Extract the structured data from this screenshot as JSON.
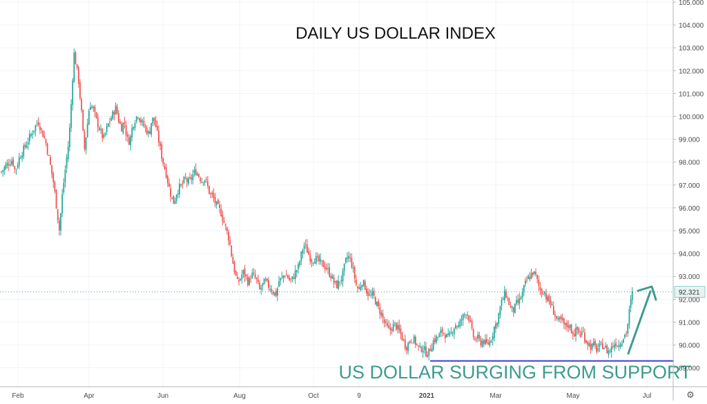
{
  "chart_data": {
    "type": "candlestick",
    "title": "DAILY US DOLLAR INDEX",
    "annotation": "US DOLLAR SURGING FROM SUPPORT",
    "last_price": "92.321",
    "support_level": 89.3,
    "ylim": [
      88.5,
      105.0
    ],
    "y_ticks": [
      "89.000",
      "90.000",
      "91.000",
      "92.000",
      "93.000",
      "94.000",
      "95.000",
      "96.000",
      "97.000",
      "98.000",
      "99.000",
      "100.000",
      "101.000",
      "102.000",
      "103.000",
      "104.000",
      "105.000"
    ],
    "x_ticks": [
      "Feb",
      "Apr",
      "Jun",
      "Aug",
      "Oct",
      "9",
      "2021",
      "Mar",
      "May",
      "Jul"
    ],
    "bold_x_ticks": [
      "2021"
    ],
    "grid": true,
    "colors": {
      "up": "#26a69a",
      "down": "#ef5350",
      "support_line": "#3b3bd4",
      "annotation": "#3d9b8f",
      "price_label_bg": "#e8f3f1",
      "grid": "#f0f3fa",
      "axis_text": "#4a4a4a"
    },
    "close_path": [
      [
        0,
        97.5
      ],
      [
        10,
        97.9
      ],
      [
        18,
        98.1
      ],
      [
        22,
        97.6
      ],
      [
        28,
        98.2
      ],
      [
        35,
        98.6
      ],
      [
        45,
        99.2
      ],
      [
        55,
        99.8
      ],
      [
        60,
        99.4
      ],
      [
        66,
        98.9
      ],
      [
        72,
        98.0
      ],
      [
        78,
        97.0
      ],
      [
        82,
        96.0
      ],
      [
        86,
        95.0
      ],
      [
        90,
        96.5
      ],
      [
        95,
        97.8
      ],
      [
        100,
        99.0
      ],
      [
        104,
        101.0
      ],
      [
        107,
        102.8
      ],
      [
        110,
        102.3
      ],
      [
        114,
        101.5
      ],
      [
        118,
        100.2
      ],
      [
        122,
        98.5
      ],
      [
        126,
        99.5
      ],
      [
        130,
        100.6
      ],
      [
        135,
        100.3
      ],
      [
        140,
        99.8
      ],
      [
        146,
        99.3
      ],
      [
        150,
        99.0
      ],
      [
        156,
        99.6
      ],
      [
        162,
        100.0
      ],
      [
        168,
        100.4
      ],
      [
        172,
        99.8
      ],
      [
        176,
        99.5
      ],
      [
        180,
        99.8
      ],
      [
        184,
        99.0
      ],
      [
        188,
        98.9
      ],
      [
        192,
        99.6
      ],
      [
        196,
        99.9
      ],
      [
        200,
        100.1
      ],
      [
        204,
        99.8
      ],
      [
        208,
        99.6
      ],
      [
        212,
        99.4
      ],
      [
        216,
        99.2
      ],
      [
        220,
        99.9
      ],
      [
        224,
        99.8
      ],
      [
        228,
        99.2
      ],
      [
        232,
        98.6
      ],
      [
        236,
        98.0
      ],
      [
        240,
        97.6
      ],
      [
        244,
        97.0
      ],
      [
        248,
        96.5
      ],
      [
        252,
        96.2
      ],
      [
        256,
        96.7
      ],
      [
        260,
        96.9
      ],
      [
        264,
        97.0
      ],
      [
        268,
        97.3
      ],
      [
        272,
        97.1
      ],
      [
        276,
        97.2
      ],
      [
        280,
        97.5
      ],
      [
        284,
        97.6
      ],
      [
        288,
        97.4
      ],
      [
        292,
        97.2
      ],
      [
        296,
        97.3
      ],
      [
        300,
        97.0
      ],
      [
        304,
        96.6
      ],
      [
        308,
        96.5
      ],
      [
        312,
        96.2
      ],
      [
        316,
        96.0
      ],
      [
        320,
        95.8
      ],
      [
        324,
        95.4
      ],
      [
        328,
        95.0
      ],
      [
        332,
        94.6
      ],
      [
        336,
        93.8
      ],
      [
        340,
        93.2
      ],
      [
        344,
        92.7
      ],
      [
        348,
        92.9
      ],
      [
        352,
        93.2
      ],
      [
        356,
        93.0
      ],
      [
        360,
        92.7
      ],
      [
        364,
        93.1
      ],
      [
        368,
        93.0
      ],
      [
        372,
        92.8
      ],
      [
        376,
        92.4
      ],
      [
        380,
        92.6
      ],
      [
        384,
        92.8
      ],
      [
        388,
        92.6
      ],
      [
        392,
        92.5
      ],
      [
        396,
        92.3
      ],
      [
        400,
        92.2
      ],
      [
        404,
        92.8
      ],
      [
        408,
        92.9
      ],
      [
        412,
        93.1
      ],
      [
        416,
        93.0
      ],
      [
        420,
        92.8
      ],
      [
        424,
        92.9
      ],
      [
        428,
        93.2
      ],
      [
        432,
        93.4
      ],
      [
        436,
        93.9
      ],
      [
        440,
        94.4
      ],
      [
        444,
        94.2
      ],
      [
        448,
        93.9
      ],
      [
        452,
        93.7
      ],
      [
        456,
        93.8
      ],
      [
        460,
        93.7
      ],
      [
        464,
        93.6
      ],
      [
        468,
        93.5
      ],
      [
        472,
        93.4
      ],
      [
        476,
        93.2
      ],
      [
        480,
        93.0
      ],
      [
        484,
        92.7
      ],
      [
        488,
        92.6
      ],
      [
        492,
        92.8
      ],
      [
        496,
        93.0
      ],
      [
        500,
        93.6
      ],
      [
        504,
        93.9
      ],
      [
        508,
        93.7
      ],
      [
        512,
        93.2
      ],
      [
        516,
        92.6
      ],
      [
        520,
        92.4
      ],
      [
        524,
        92.8
      ],
      [
        528,
        92.6
      ],
      [
        532,
        92.3
      ],
      [
        536,
        92.1
      ],
      [
        540,
        92.2
      ],
      [
        544,
        91.9
      ],
      [
        548,
        91.6
      ],
      [
        552,
        91.4
      ],
      [
        556,
        91.0
      ],
      [
        560,
        90.8
      ],
      [
        564,
        90.6
      ],
      [
        568,
        90.8
      ],
      [
        572,
        90.9
      ],
      [
        576,
        90.7
      ],
      [
        580,
        90.5
      ],
      [
        584,
        90.2
      ],
      [
        588,
        89.9
      ],
      [
        592,
        90.1
      ],
      [
        596,
        90.3
      ],
      [
        600,
        90.2
      ],
      [
        604,
        90.0
      ],
      [
        608,
        89.8
      ],
      [
        612,
        89.9
      ],
      [
        616,
        89.7
      ],
      [
        620,
        89.6
      ],
      [
        624,
        89.9
      ],
      [
        628,
        90.2
      ],
      [
        632,
        90.3
      ],
      [
        636,
        90.4
      ],
      [
        640,
        90.6
      ],
      [
        644,
        90.5
      ],
      [
        648,
        90.3
      ],
      [
        652,
        90.4
      ],
      [
        656,
        90.7
      ],
      [
        660,
        90.9
      ],
      [
        664,
        90.8
      ],
      [
        668,
        91.1
      ],
      [
        672,
        91.3
      ],
      [
        676,
        91.5
      ],
      [
        680,
        91.1
      ],
      [
        684,
        90.5
      ],
      [
        688,
        90.2
      ],
      [
        692,
        90.3
      ],
      [
        696,
        90.1
      ],
      [
        700,
        90.2
      ],
      [
        704,
        90.0
      ],
      [
        708,
        90.1
      ],
      [
        712,
        90.3
      ],
      [
        716,
        90.8
      ],
      [
        720,
        91.0
      ],
      [
        724,
        91.6
      ],
      [
        728,
        92.0
      ],
      [
        732,
        92.3
      ],
      [
        736,
        91.9
      ],
      [
        740,
        91.6
      ],
      [
        744,
        91.5
      ],
      [
        748,
        91.8
      ],
      [
        752,
        91.9
      ],
      [
        756,
        92.2
      ],
      [
        760,
        92.6
      ],
      [
        764,
        92.9
      ],
      [
        768,
        93.0
      ],
      [
        772,
        93.2
      ],
      [
        776,
        93.0
      ],
      [
        780,
        92.6
      ],
      [
        784,
        92.3
      ],
      [
        788,
        92.4
      ],
      [
        792,
        92.0
      ],
      [
        796,
        91.9
      ],
      [
        800,
        91.6
      ],
      [
        804,
        91.3
      ],
      [
        808,
        91.0
      ],
      [
        812,
        91.1
      ],
      [
        816,
        90.9
      ],
      [
        820,
        90.8
      ],
      [
        824,
        90.9
      ],
      [
        828,
        90.6
      ],
      [
        832,
        90.5
      ],
      [
        836,
        90.7
      ],
      [
        840,
        90.4
      ],
      [
        844,
        90.6
      ],
      [
        848,
        90.2
      ],
      [
        852,
        90.1
      ],
      [
        856,
        89.9
      ],
      [
        860,
        90.0
      ],
      [
        864,
        89.8
      ],
      [
        868,
        89.9
      ],
      [
        872,
        90.0
      ],
      [
        876,
        89.9
      ],
      [
        880,
        89.7
      ],
      [
        884,
        89.8
      ],
      [
        888,
        90.0
      ],
      [
        892,
        90.1
      ],
      [
        896,
        90.0
      ],
      [
        900,
        90.2
      ],
      [
        904,
        90.4
      ],
      [
        908,
        90.6
      ],
      [
        912,
        91.6
      ],
      [
        916,
        92.3
      ]
    ]
  }
}
